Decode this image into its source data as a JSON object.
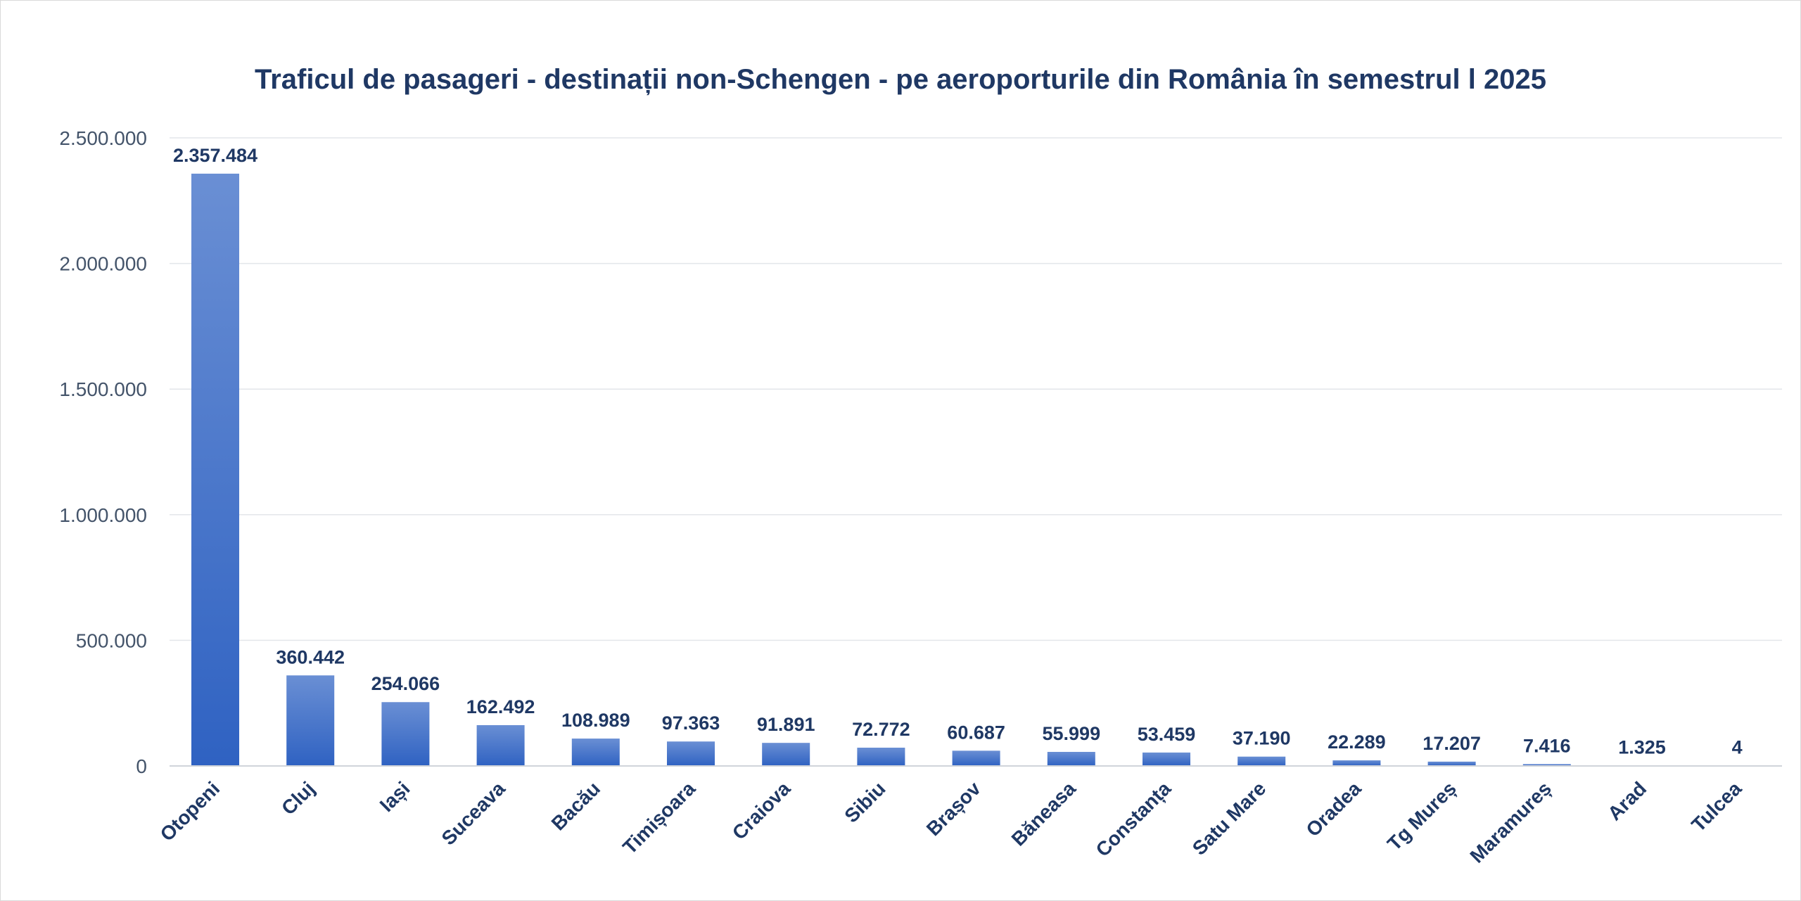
{
  "chart_data": {
    "type": "bar",
    "title": "Traficul de pasageri - destinații non-Schengen - pe aeroporturile din România în semestrul l 2025",
    "xlabel": "",
    "ylabel": "",
    "ylim": [
      0,
      2500000
    ],
    "y_ticks": [
      0,
      500000,
      1000000,
      1500000,
      2000000,
      2500000
    ],
    "y_tick_labels": [
      "0",
      "500.000",
      "1.000.000",
      "1.500.000",
      "2.000.000",
      "2.500.000"
    ],
    "grid": true,
    "legend": "none",
    "categories": [
      "Otopeni",
      "Cluj",
      "Iași",
      "Suceava",
      "Bacău",
      "Timișoara",
      "Craiova",
      "Sibiu",
      "Brașov",
      "Băneasa",
      "Constanța",
      "Satu Mare",
      "Oradea",
      "Tg Mureș",
      "Maramureș",
      "Arad",
      "Tulcea"
    ],
    "values": [
      2357484,
      360442,
      254066,
      162492,
      108989,
      97363,
      91891,
      72772,
      60687,
      55999,
      53459,
      37190,
      22289,
      17207,
      7416,
      1325,
      4
    ],
    "value_labels": [
      "2.357.484",
      "360.442",
      "254.066",
      "162.492",
      "108.989",
      "97.363",
      "91.891",
      "72.772",
      "60.687",
      "55.999",
      "53.459",
      "37.190",
      "22.289",
      "17.207",
      "7.416",
      "1.325",
      "4"
    ],
    "colors": {
      "bar_top": "#6a8fd4",
      "bar_bottom": "#2f62c2",
      "title": "#1f3864",
      "labels": "#1f3864",
      "ticks": "#44546a",
      "grid": "#e3e6ea"
    }
  }
}
